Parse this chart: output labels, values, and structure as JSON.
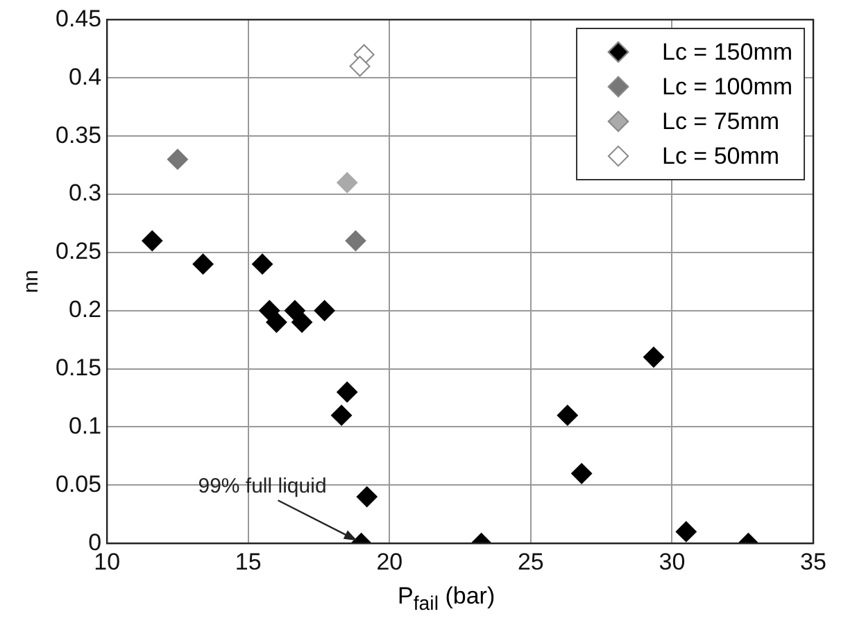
{
  "chart_data": {
    "type": "scatter",
    "xlabel": "P$_{fail}$ (bar)",
    "ylabel": "nn",
    "xlim": [
      10,
      35
    ],
    "xticks": [
      10,
      15,
      20,
      25,
      30,
      35
    ],
    "ylim": [
      0,
      0.45
    ],
    "yticks": [
      0,
      0.05,
      0.1,
      0.15,
      0.2,
      0.25,
      0.3,
      0.35,
      0.4,
      0.45
    ],
    "grid": true,
    "legend": "top right",
    "marker": "diamond",
    "annotations": [
      {
        "text": "99% full liquid",
        "x": 19,
        "y": 0
      }
    ],
    "series": [
      {
        "name": "Lc = 150mm",
        "color": "#000000",
        "x": [
          11.6,
          13.4,
          15.5,
          15.75,
          16.0,
          16.65,
          16.9,
          17.7,
          18.3,
          18.5,
          19.2,
          19.0,
          23.25,
          26.3,
          26.8,
          29.35,
          30.5,
          32.7
        ],
        "values": [
          0.26,
          0.24,
          0.24,
          0.2,
          0.19,
          0.2,
          0.19,
          0.2,
          0.11,
          0.13,
          0.04,
          0,
          0,
          0.11,
          0.06,
          0.16,
          0.01,
          0
        ]
      },
      {
        "name": "Lc = 100mm",
        "color": "#777777",
        "x": [
          12.5,
          18.8
        ],
        "values": [
          0.33,
          0.26
        ]
      },
      {
        "name": "Lc = 75mm",
        "color": "#aaaaaa",
        "x": [
          18.5
        ],
        "values": [
          0.31
        ]
      },
      {
        "name": "Lc = 50mm",
        "color": "#ffffff",
        "x": [
          19.1,
          18.95
        ],
        "values": [
          0.42,
          0.41
        ]
      }
    ]
  }
}
